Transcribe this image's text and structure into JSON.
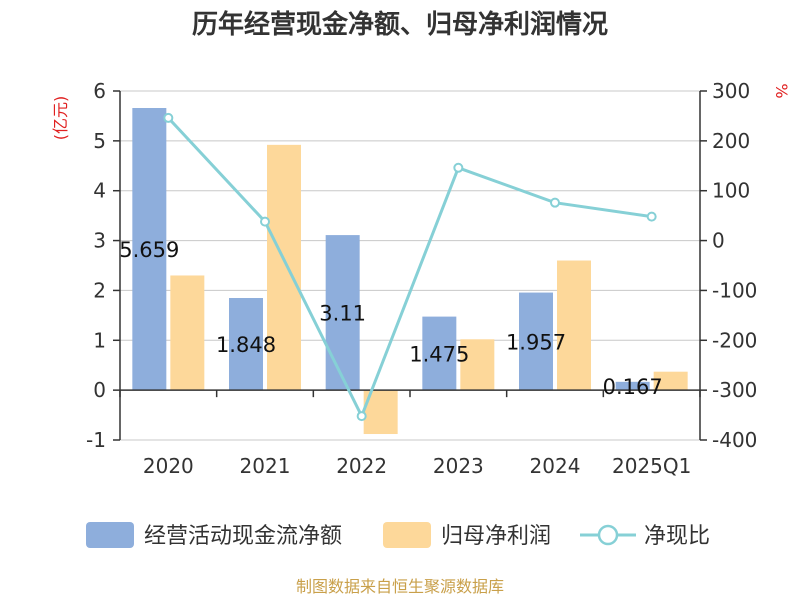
{
  "chart_data": {
    "type": "bar",
    "title": "历年经营现金净额、归母净利润情况",
    "categories": [
      "2020",
      "2021",
      "2022",
      "2023",
      "2024",
      "2025Q1"
    ],
    "left_axis": {
      "unit": "(亿元)",
      "ylim": [
        -1,
        6
      ],
      "ticks": [
        -1,
        0,
        1,
        2,
        3,
        4,
        5,
        6
      ]
    },
    "right_axis": {
      "unit": "%",
      "ylim": [
        -400,
        300
      ],
      "ticks": [
        -400,
        -300,
        -200,
        -100,
        0,
        100,
        200,
        300
      ]
    },
    "series": [
      {
        "name": "经营活动现金流净额",
        "kind": "bar",
        "axis": "left",
        "color": "#8eaedc",
        "values": [
          5.659,
          1.848,
          3.11,
          1.475,
          1.957,
          0.167
        ],
        "labels": [
          "5.659",
          "1.848",
          "3.11",
          "1.475",
          "1.957",
          "0.167"
        ]
      },
      {
        "name": "归母净利润",
        "kind": "bar",
        "axis": "left",
        "color": "#fdd89a",
        "values": [
          2.3,
          4.92,
          -0.88,
          1.02,
          2.6,
          0.37
        ]
      },
      {
        "name": "净现比",
        "kind": "line",
        "axis": "right",
        "color": "#86d0d6",
        "values": [
          246,
          38,
          -352,
          146,
          76,
          48
        ]
      }
    ],
    "grid": true,
    "legend_position": "bottom"
  },
  "footer": {
    "source": "制图数据来自恒生聚源数据库"
  }
}
